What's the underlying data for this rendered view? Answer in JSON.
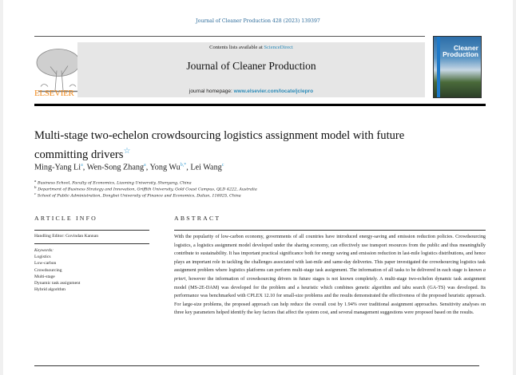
{
  "header": {
    "journal_reference": "Journal of Cleaner Production 428 (2023) 139397",
    "contents_prefix": "Contents lists available at ",
    "contents_link": "ScienceDirect",
    "journal_title": "Journal of Cleaner Production",
    "homepage_prefix": "journal homepage: ",
    "homepage_link": "www.elsevier.com/locate/jclepro",
    "publisher_logo_text": "ELSEVIER",
    "cover_text_1": "Cleaner",
    "cover_text_2": "Production"
  },
  "article": {
    "title": "Multi-stage two-echelon crowdsourcing logistics assignment model with future committing drivers",
    "title_mark": "☆",
    "authors": [
      {
        "name": "Ming-Yang Li",
        "aff": "a"
      },
      {
        "name": "Wen-Song Zhang",
        "aff": "a"
      },
      {
        "name": "Yong Wu",
        "aff": "b,*"
      },
      {
        "name": "Lei Wang",
        "aff": "c"
      }
    ],
    "affiliations": [
      {
        "mark": "a",
        "text": "Business School, Faculty of Economics, Liaoning University, Shenyang, China"
      },
      {
        "mark": "b",
        "text": "Department of Business Strategy and Innovation, Griffith University, Gold Coast Campus, QLD 4222, Australia"
      },
      {
        "mark": "c",
        "text": "School of Public Administration, Dongbei University of Finance and Economics, Dalian, 116025, China"
      }
    ]
  },
  "article_info": {
    "heading": "ARTICLE INFO",
    "handling_editor": "Handling Editor: Govindan Kannan",
    "keywords_label": "Keywords:",
    "keywords": [
      "Logistics",
      "Low-carbon",
      "Crowdsourcing",
      "Multi-stage",
      "Dynamic task assignment",
      "Hybrid algorithm"
    ]
  },
  "abstract": {
    "heading": "ABSTRACT",
    "text_before_italic": "With the popularity of low-carbon economy, governments of all countries have introduced energy-saving and emission reduction policies. Crowdsourcing logistics, a logistics assignment model developed under the sharing economy, can effectively use transport resources from the public and thus meaningfully contribute to sustainability. It has important practical significance both for energy saving and emission reduction in last-mile logistics distributions, and hence plays an important role in tackling the challenges associated with last-mile and same-day deliveries. This paper investigated the crowdsourcing logistics task assignment problem where logistics platforms can perform multi-stage task assignment. The information of all tasks to be delivered in each stage is known ",
    "italic": "a priori",
    "text_after_italic": ", however the information of crowdsourcing drivers in future stages is not known completely. A multi-stage two-echelon dynamic task assignment model (MS-2E-DAM) was developed for the problem and a heuristic which combines genetic algorithm and tabu search (GA-TS) was developed. Its performance was benchmarked with CPLEX 12.10 for small-size problems and the results demonstrated the effectiveness of the proposed heuristic approach. For large-size problems, the proposed approach can help reduce the overall cost by 1.94% over traditional assignment approaches. Sensitivity analyses on three key parameters helped identify the key factors that affect the system cost, and several management suggestions were proposed based on the results."
  }
}
